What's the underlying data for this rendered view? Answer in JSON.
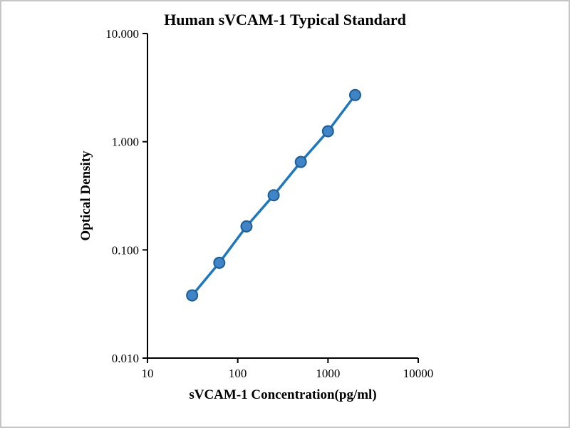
{
  "chart_data": {
    "type": "scatter",
    "title": "Human sVCAM-1 Typical Standard",
    "xlabel": "sVCAM-1 Concentration(pg/ml)",
    "ylabel": "Optical Density",
    "x_scale": "log",
    "y_scale": "log",
    "xlim": [
      10,
      10000
    ],
    "ylim": [
      0.01,
      10.0
    ],
    "x_ticks": [
      "10",
      "100",
      "1000",
      "10000"
    ],
    "y_ticks": [
      "10.000",
      "1.000",
      "0.100",
      "0.010"
    ],
    "grid": false,
    "legend": false,
    "series": [
      {
        "name": "Typical Standard",
        "x": [
          31.25,
          62.5,
          125,
          250,
          500,
          1000,
          2000
        ],
        "y": [
          0.038,
          0.076,
          0.165,
          0.32,
          0.65,
          1.25,
          2.7
        ],
        "line_color": "#1f78bc",
        "marker_fill": "#3f84c6",
        "marker_stroke": "#1d5c94"
      }
    ],
    "colors": {
      "axis": "#000000",
      "text": "#000000",
      "background": "#ffffff"
    }
  }
}
